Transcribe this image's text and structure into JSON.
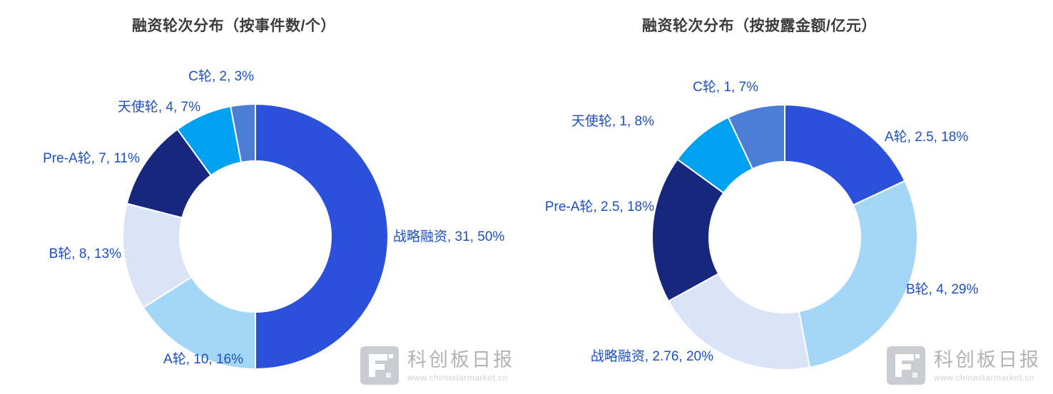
{
  "chart_data": [
    {
      "type": "pie",
      "subtype": "donut",
      "title": "融资轮次分布（按事件数/个）",
      "value_unit": "个",
      "label_format": "name, value, percent",
      "slices": [
        {
          "name": "战略融资",
          "value": 31,
          "pct": 50,
          "label": "战略融资, 31, 50%",
          "color": "#2b50dc"
        },
        {
          "name": "A轮",
          "value": 10,
          "pct": 16,
          "label": "A轮, 10, 16%",
          "color": "#a4d7f7"
        },
        {
          "name": "B轮",
          "value": 8,
          "pct": 13,
          "label": "B轮, 8, 13%",
          "color": "#d9e5f6"
        },
        {
          "name": "Pre-A轮",
          "value": 7,
          "pct": 11,
          "label": "Pre-A轮, 7, 11%",
          "color": "#17277e"
        },
        {
          "name": "天使轮",
          "value": 4,
          "pct": 7,
          "label": "天使轮, 4, 7%",
          "color": "#00a1f1"
        },
        {
          "name": "C轮",
          "value": 2,
          "pct": 3,
          "label": "C轮, 2, 3%",
          "color": "#4c7ed6"
        }
      ]
    },
    {
      "type": "pie",
      "subtype": "donut",
      "title": "融资轮次分布（按披露金额/亿元）",
      "value_unit": "亿元",
      "label_format": "name, value, percent",
      "slices": [
        {
          "name": "A轮",
          "value": 2.5,
          "pct": 18,
          "label": "A轮, 2.5, 18%",
          "color": "#2b50dc"
        },
        {
          "name": "B轮",
          "value": 4,
          "pct": 29,
          "label": "B轮, 4, 29%",
          "color": "#a4d7f7"
        },
        {
          "name": "战略融资",
          "value": 2.76,
          "pct": 20,
          "label": "战略融资, 2.76, 20%",
          "color": "#d9e5f6"
        },
        {
          "name": "Pre-A轮",
          "value": 2.5,
          "pct": 18,
          "label": "Pre-A轮, 2.5, 18%",
          "color": "#17277e"
        },
        {
          "name": "天使轮",
          "value": 1,
          "pct": 8,
          "label": "天使轮, 1, 8%",
          "color": "#00a1f1"
        },
        {
          "name": "C轮",
          "value": 1,
          "pct": 7,
          "label": "C轮, 1, 7%",
          "color": "#4c7ed6"
        }
      ]
    }
  ],
  "watermark": {
    "brand": "科创板日报",
    "url": "www.chinastarmarket.cn"
  },
  "colors": {
    "label_text": "#1c4fc4",
    "title_text": "#3c3c3c",
    "slice_border": "#ffffff"
  }
}
